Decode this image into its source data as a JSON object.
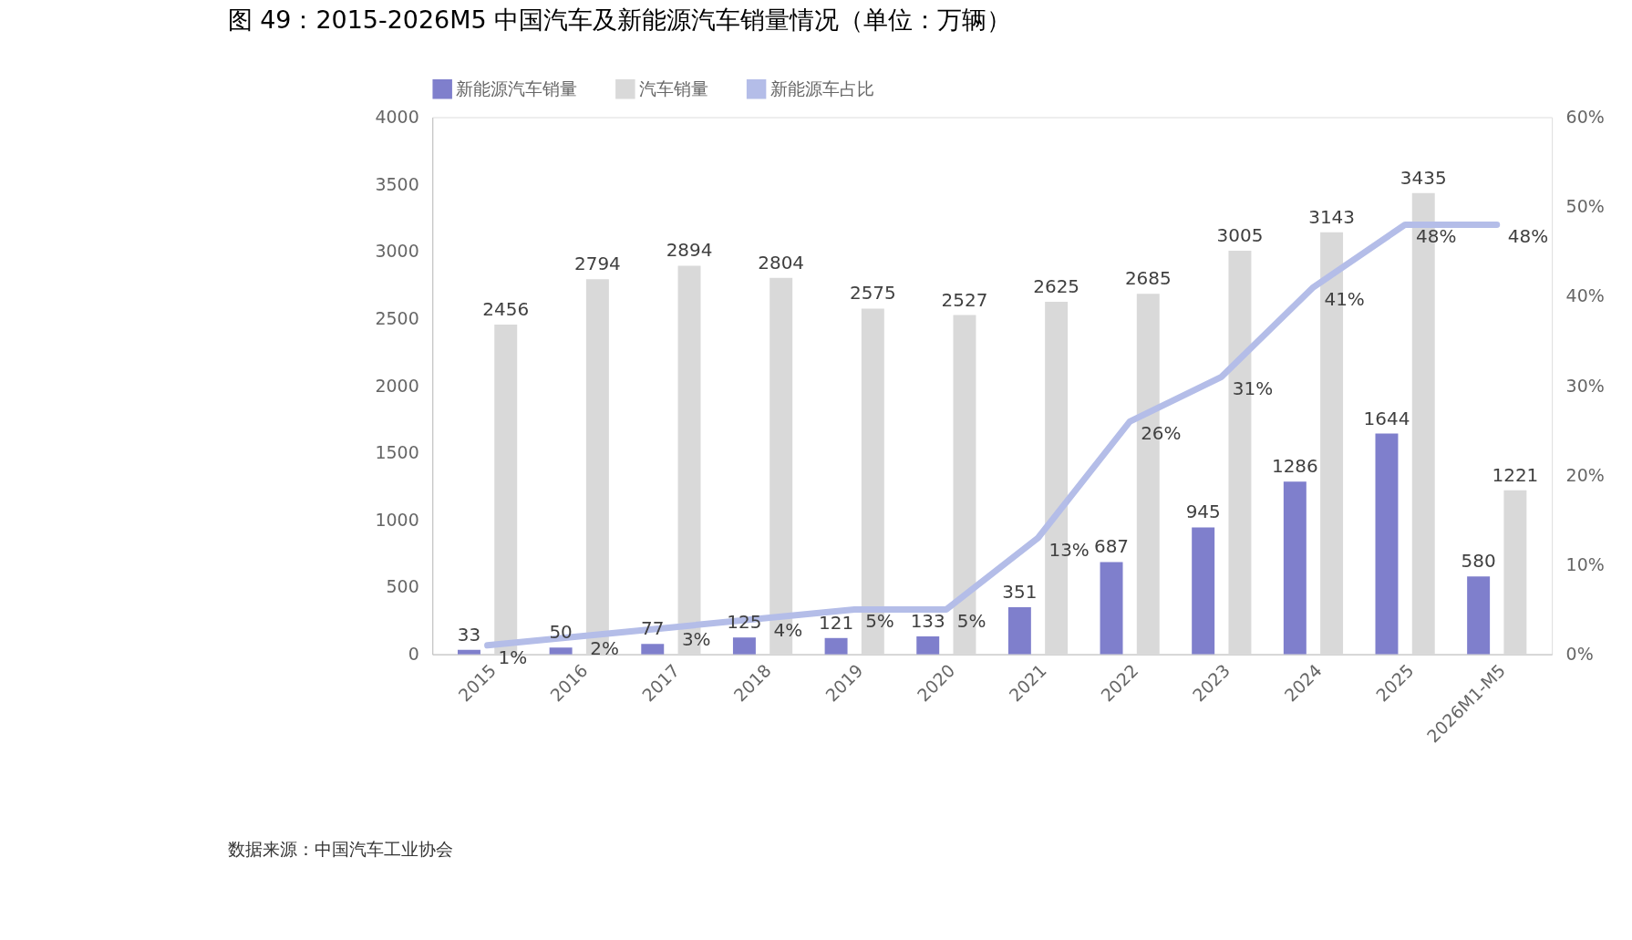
{
  "chart_data": {
    "type": "bar",
    "title": "图 49：2015-2026M5 中国汽车及新能源汽车销量情况（单位：万辆）",
    "categories": [
      "2015",
      "2016",
      "2017",
      "2018",
      "2019",
      "2020",
      "2021",
      "2022",
      "2023",
      "2024",
      "2025",
      "2026M1-M5"
    ],
    "series": [
      {
        "name": "新能源汽车销量",
        "color": "#7f7fcc",
        "values": [
          33,
          50,
          77,
          125,
          121,
          133,
          351,
          687,
          945,
          1286,
          1644,
          580
        ]
      },
      {
        "name": "汽车销量",
        "color": "#d9d9d9",
        "values": [
          2456,
          2794,
          2894,
          2804,
          2575,
          2527,
          2625,
          2685,
          3005,
          3143,
          3435,
          1221
        ]
      },
      {
        "name": "新能源车占比",
        "type": "line",
        "axis": "y2",
        "color": "#b4bde8",
        "values": [
          1,
          2,
          3,
          4,
          5,
          5,
          13,
          26,
          31,
          41,
          48,
          48
        ],
        "value_labels": [
          "1%",
          "2%",
          "3%",
          "4%",
          "5%",
          "5%",
          "13%",
          "26%",
          "31%",
          "41%",
          "48%",
          "48%"
        ]
      }
    ],
    "ylim": [
      0,
      4000
    ],
    "yticks": [
      0,
      500,
      1000,
      1500,
      2000,
      2500,
      3000,
      3500,
      4000
    ],
    "y2lim": [
      0,
      60
    ],
    "y2ticks": [
      {
        "value": 0,
        "label": "0%"
      },
      {
        "value": 10,
        "label": "10%"
      },
      {
        "value": 20,
        "label": "20%"
      },
      {
        "value": 30,
        "label": "30%"
      },
      {
        "value": 40,
        "label": "40%"
      },
      {
        "value": 50,
        "label": "50%"
      },
      {
        "value": 60,
        "label": "60%"
      }
    ],
    "data_labels": true,
    "grid": false,
    "legend": "top",
    "marker": "none",
    "annotations": [
      "数据来源：中国汽车工业协会"
    ]
  }
}
